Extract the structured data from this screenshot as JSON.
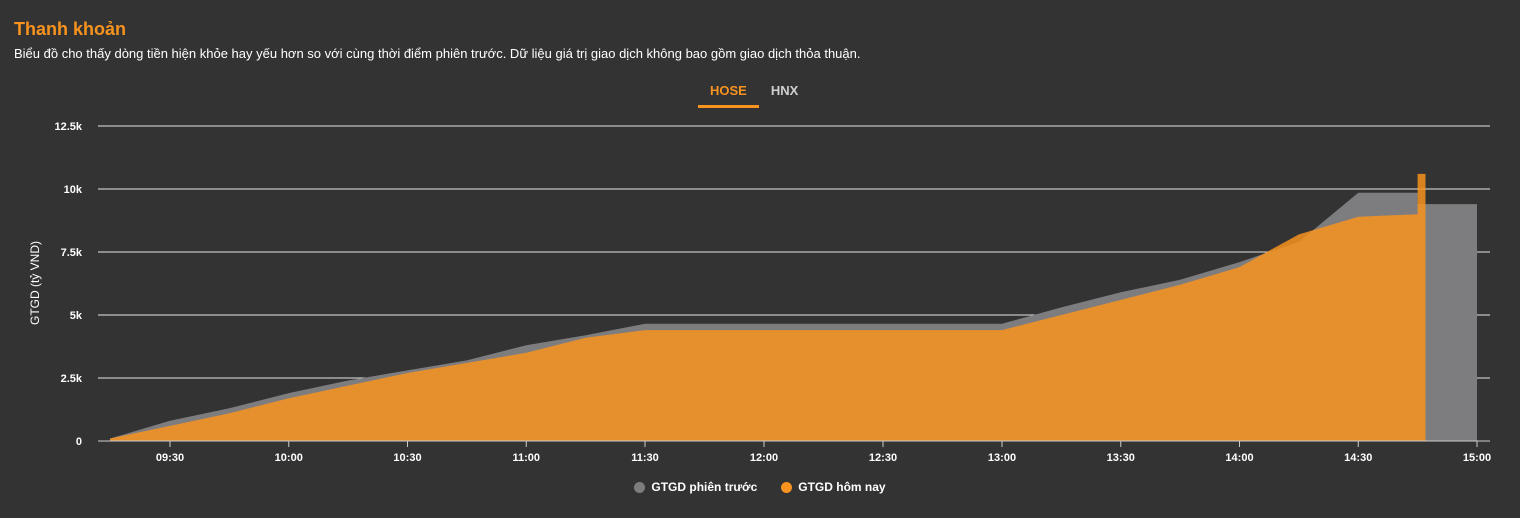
{
  "title": "Thanh khoản",
  "subtitle": "Biểu đồ cho thấy dòng tiền hiện khỏe hay yếu hơn so với cùng thời điểm phiên trước. Dữ liệu giá trị giao dịch không bao gồm giao dịch thỏa thuận.",
  "tabs": [
    {
      "label": "HOSE",
      "active": true
    },
    {
      "label": "HNX",
      "active": false
    }
  ],
  "colors": {
    "background": "#333333",
    "today": "#f7931e",
    "previous": "#7d7d80",
    "title": "#f7931e"
  },
  "chart_data": {
    "type": "area",
    "ylabel": "GTGD (tỷ VND)",
    "xlabel": "",
    "ylim": [
      0,
      12500
    ],
    "xlim": [
      "09:15",
      "15:00"
    ],
    "y_ticks": [
      0,
      2500,
      5000,
      7500,
      10000,
      12500
    ],
    "y_tick_labels": [
      "0",
      "2.5k",
      "5k",
      "7.5k",
      "10k",
      "12.5k"
    ],
    "x_tick_labels": [
      "09:30",
      "10:00",
      "10:30",
      "11:00",
      "11:30",
      "12:00",
      "12:30",
      "13:00",
      "13:30",
      "14:00",
      "14:30",
      "15:00"
    ],
    "grid": true,
    "legend_position": "bottom-center",
    "series": [
      {
        "name": "GTGD phiên trước",
        "color": "#7d7d80",
        "points": [
          [
            "09:15",
            100
          ],
          [
            "09:30",
            800
          ],
          [
            "09:45",
            1300
          ],
          [
            "10:00",
            1900
          ],
          [
            "10:15",
            2400
          ],
          [
            "10:30",
            2800
          ],
          [
            "10:45",
            3200
          ],
          [
            "11:00",
            3800
          ],
          [
            "11:15",
            4200
          ],
          [
            "11:30",
            4650
          ],
          [
            "13:00",
            4650
          ],
          [
            "13:15",
            5300
          ],
          [
            "13:30",
            5900
          ],
          [
            "13:45",
            6400
          ],
          [
            "14:00",
            7100
          ],
          [
            "14:15",
            7900
          ],
          [
            "14:30",
            9850
          ],
          [
            "14:45",
            9850
          ],
          [
            "14:45",
            9400
          ],
          [
            "15:00",
            9400
          ]
        ]
      },
      {
        "name": "GTGD hôm nay",
        "color": "#f7931e",
        "points": [
          [
            "09:15",
            100
          ],
          [
            "09:30",
            600
          ],
          [
            "09:45",
            1100
          ],
          [
            "10:00",
            1700
          ],
          [
            "10:15",
            2200
          ],
          [
            "10:30",
            2700
          ],
          [
            "10:45",
            3100
          ],
          [
            "11:00",
            3500
          ],
          [
            "11:15",
            4100
          ],
          [
            "11:30",
            4400
          ],
          [
            "13:00",
            4400
          ],
          [
            "13:15",
            5000
          ],
          [
            "13:30",
            5600
          ],
          [
            "13:45",
            6200
          ],
          [
            "14:00",
            6900
          ],
          [
            "14:15",
            8200
          ],
          [
            "14:30",
            8900
          ],
          [
            "14:45",
            9000
          ],
          [
            "14:45",
            10600
          ],
          [
            "14:47",
            10600
          ],
          [
            "14:47",
            0
          ]
        ]
      }
    ]
  }
}
